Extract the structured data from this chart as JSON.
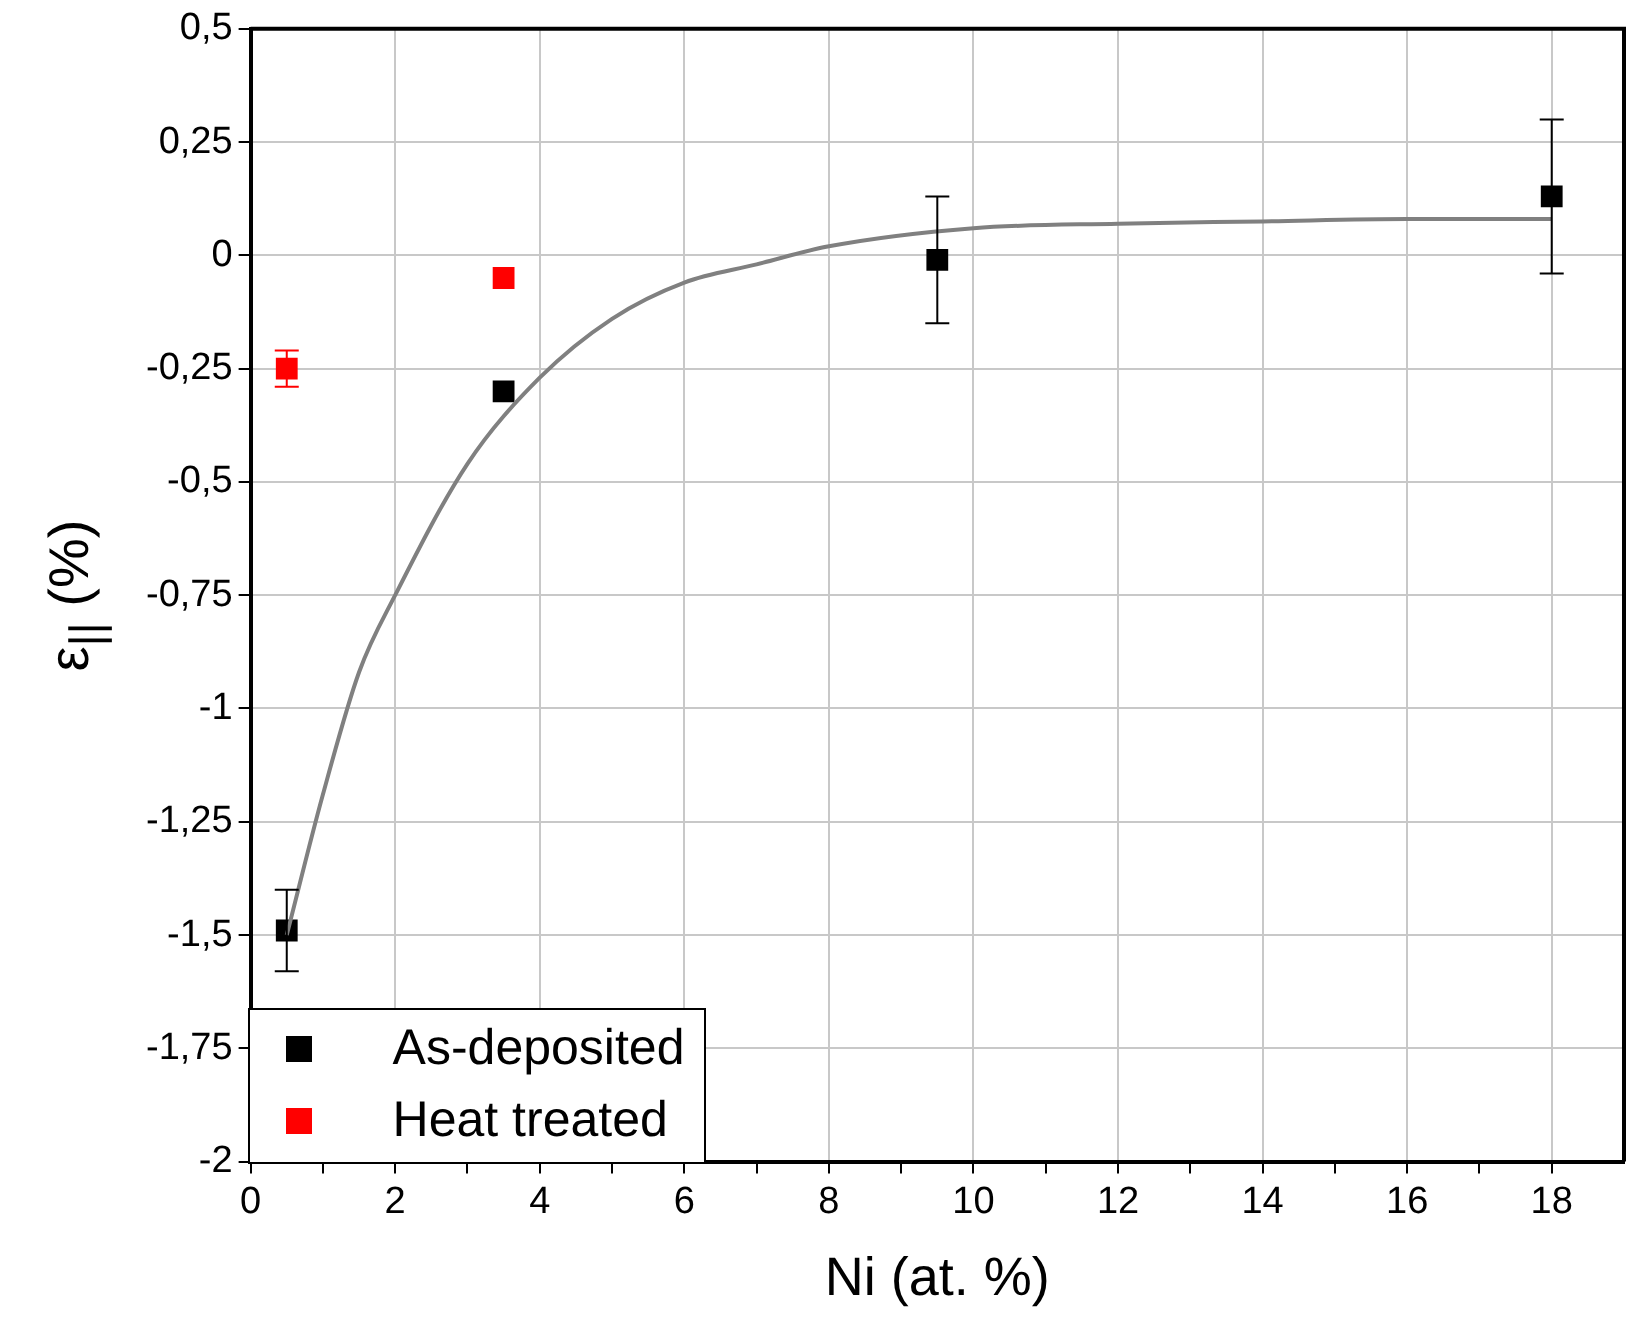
{
  "chart_data": {
    "type": "scatter",
    "xlabel": "Ni (at. %)",
    "ylabel": "ε$_{||}$ (%)",
    "xlim": [
      0,
      19
    ],
    "ylim": [
      -2,
      0.5
    ],
    "xticks": [
      0,
      {
        "value": 1,
        "label": null
      },
      2,
      {
        "value": 3,
        "label": null
      },
      4,
      {
        "value": 5,
        "label": null
      },
      6,
      {
        "value": 7,
        "label": null
      },
      8,
      {
        "value": 9,
        "label": null
      },
      10,
      {
        "value": 11,
        "label": null
      },
      12,
      {
        "value": 13,
        "label": null
      },
      14,
      {
        "value": 15,
        "label": null
      },
      16,
      {
        "value": 17,
        "label": null
      },
      18
    ],
    "yticks": [
      {
        "value": -2,
        "label": "-2"
      },
      {
        "value": -1.75,
        "label": "-1,75"
      },
      {
        "value": -1.5,
        "label": "-1,5"
      },
      {
        "value": -1.25,
        "label": "-1,25"
      },
      {
        "value": -1,
        "label": "-1"
      },
      {
        "value": -0.75,
        "label": "-0,75"
      },
      {
        "value": -0.5,
        "label": "-0,5"
      },
      {
        "value": -0.25,
        "label": "-0,25"
      },
      {
        "value": 0,
        "label": "0"
      },
      {
        "value": 0.25,
        "label": "0,25"
      },
      {
        "value": 0.5,
        "label": "0,5"
      }
    ],
    "grid": true,
    "legend": "bottom left",
    "marker": "square",
    "series": [
      {
        "type": "line",
        "color": "#808080",
        "marker": "none",
        "line_style": "solid",
        "x": [
          0.5,
          1,
          1.5,
          2,
          3,
          4,
          5,
          6,
          7,
          8,
          10,
          12,
          14,
          16,
          18
        ],
        "values": [
          -1.5,
          -1.19,
          -0.92,
          -0.75,
          -0.46,
          -0.27,
          -0.14,
          -0.06,
          -0.02,
          0.02,
          0.06,
          0.07,
          0.075,
          0.08,
          0.08
        ]
      },
      {
        "name": "As-deposited",
        "color": "#000000",
        "x": [
          0.5,
          3.5,
          9.5,
          18
        ],
        "values": [
          -1.49,
          -0.3,
          -0.01,
          0.13
        ],
        "errors": [
          0.09,
          null,
          0.14,
          0.17
        ]
      },
      {
        "name": "Heat treated",
        "color": "#ff0000",
        "x": [
          0.5,
          3.5
        ],
        "values": [
          -0.25,
          -0.05
        ],
        "errors": [
          0.04,
          null
        ]
      }
    ]
  }
}
